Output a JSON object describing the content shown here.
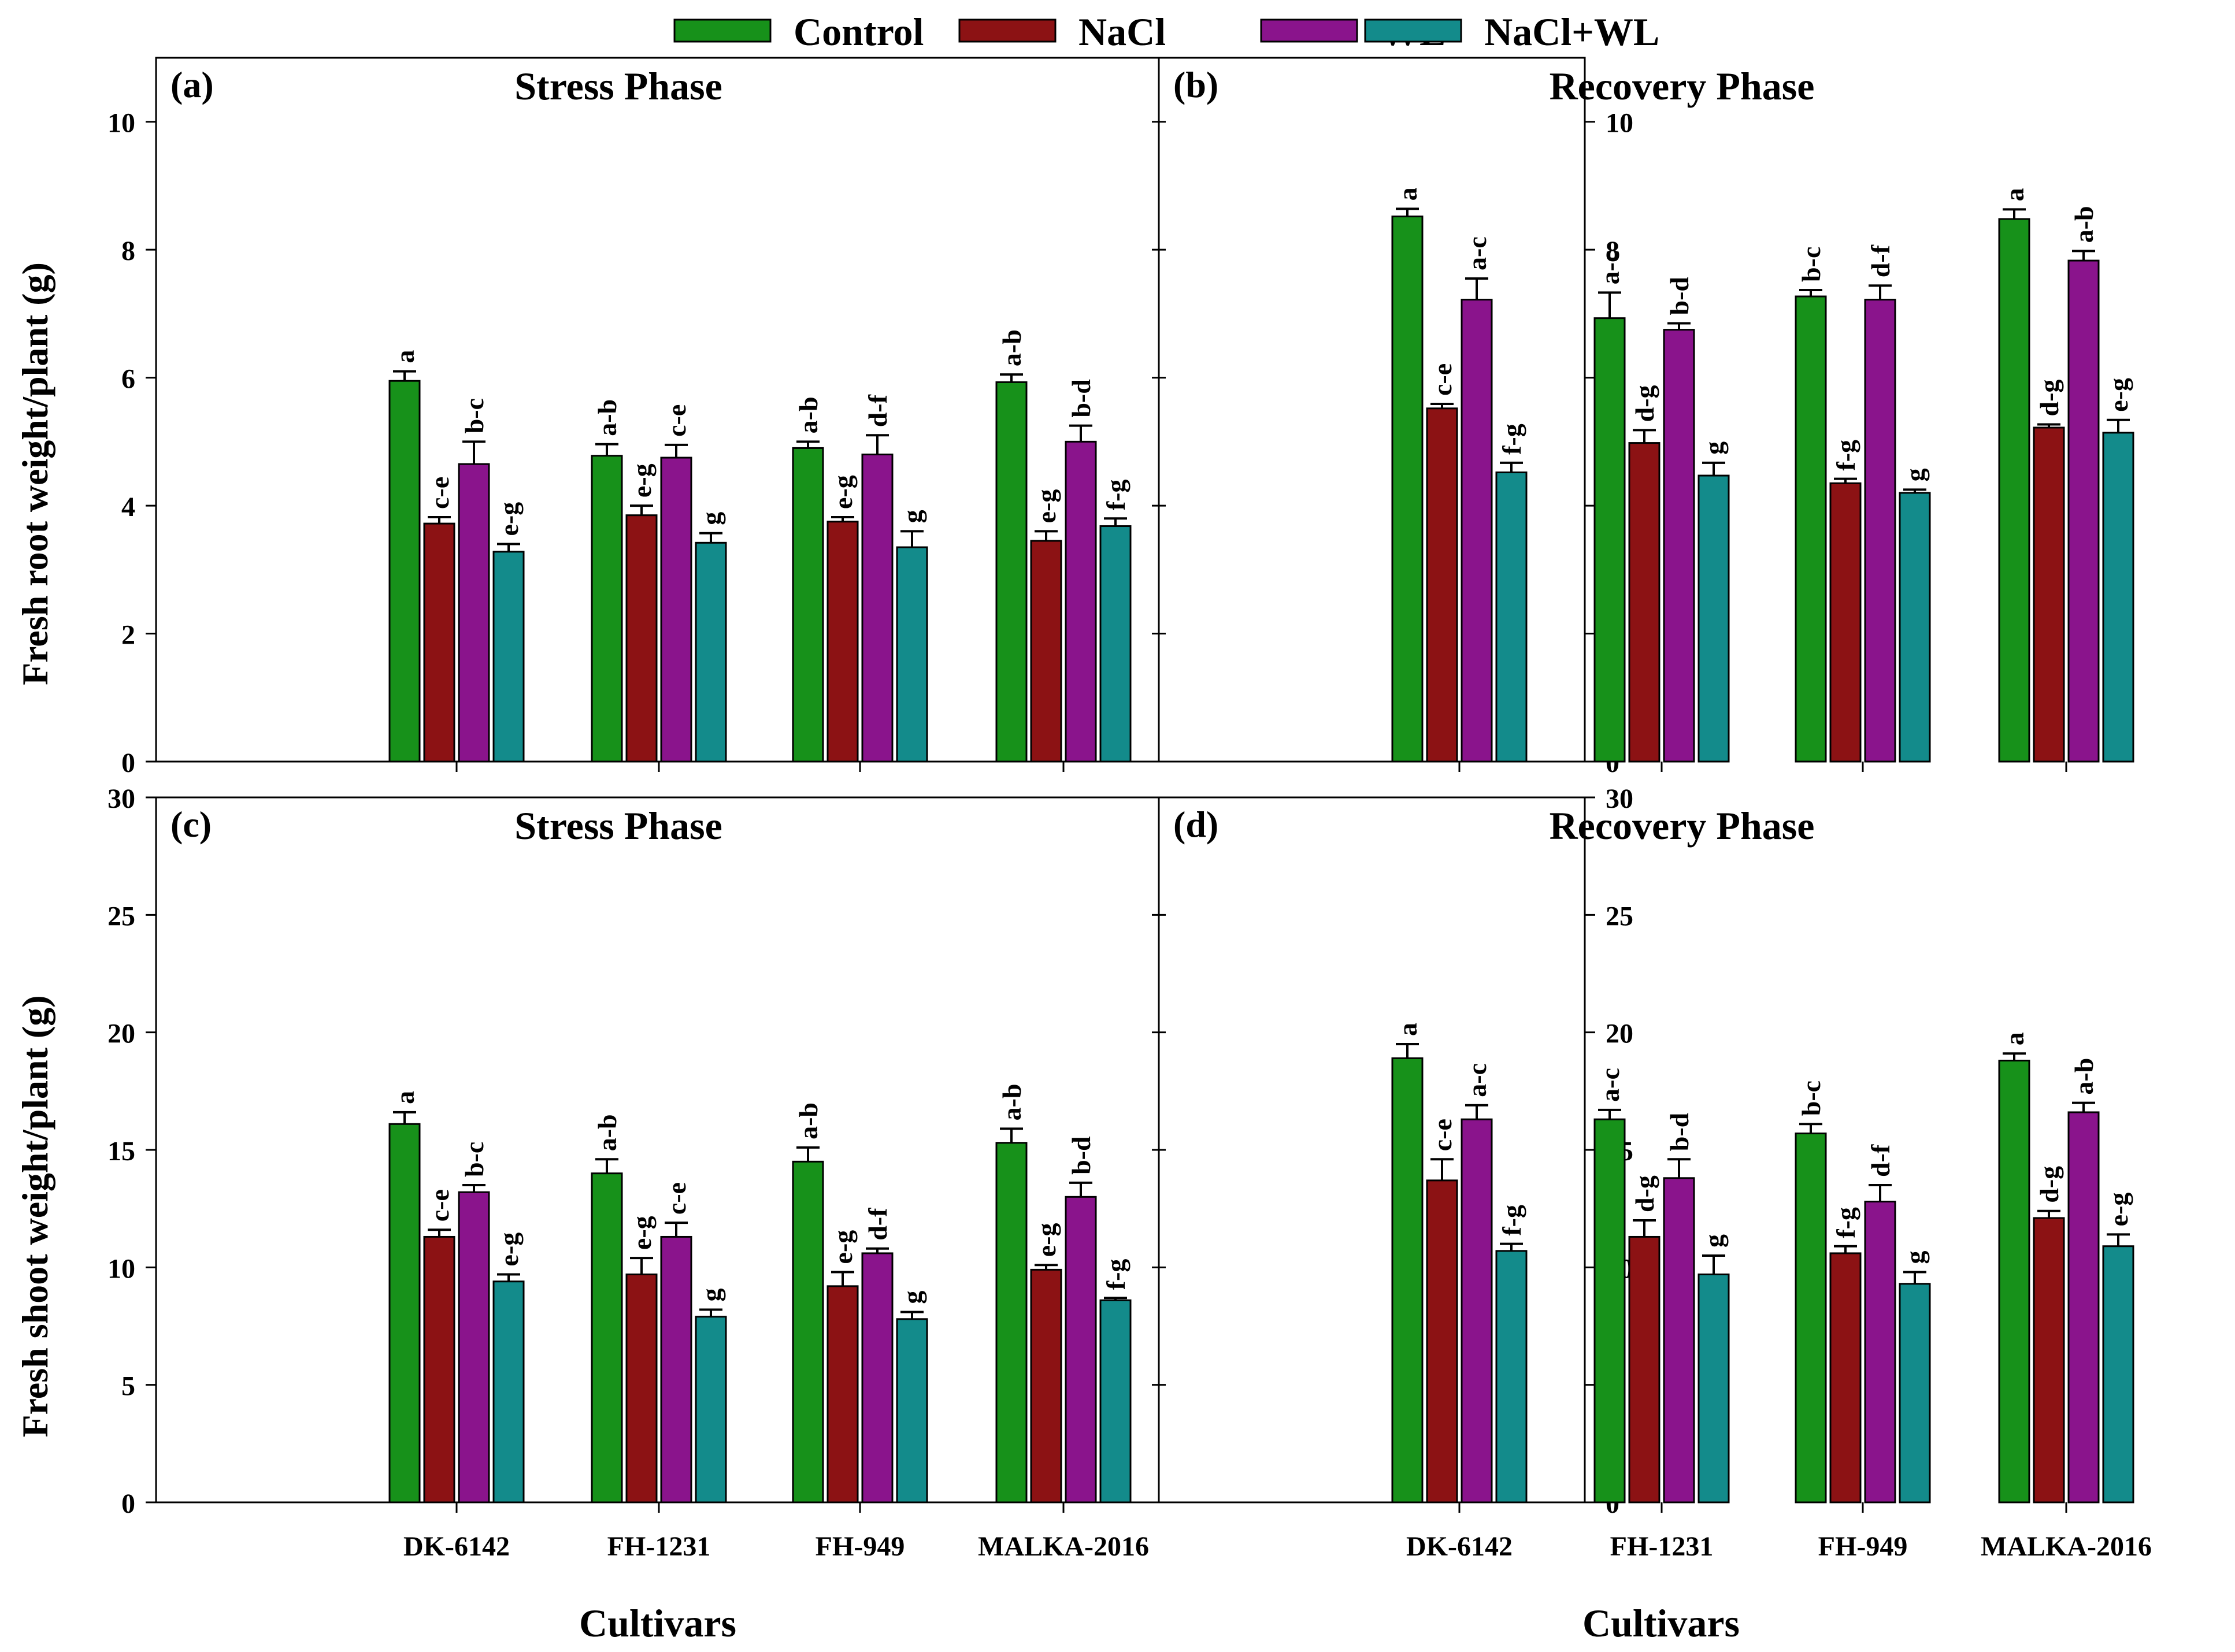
{
  "colors": {
    "Control": "#17911a",
    "NaCl": "#8c1214",
    "WL": "#8a148c",
    "NaCl+WL": "#138b8b"
  },
  "chart_data": {
    "type": "bar",
    "legend": {
      "entries": [
        "Control",
        "NaCl",
        "WL",
        "NaCl+WL"
      ],
      "placement": "top-center"
    },
    "categories": [
      "DK-6142",
      "FH-1231",
      "FH-949",
      "MALKA-2016"
    ],
    "xlabel": "Cultivars",
    "rows": [
      {
        "ylabel": "Fresh root weight/plant (g)",
        "ylim": [
          0,
          11
        ],
        "yticks": [
          0,
          2,
          4,
          6,
          8,
          10
        ],
        "panels": [
          {
            "label": "(a)",
            "title": "Stress Phase",
            "series": [
              {
                "name": "Control",
                "values": [
                  5.95,
                  4.78,
                  4.9,
                  5.93
                ],
                "errors": [
                  0.15,
                  0.18,
                  0.1,
                  0.12
                ],
                "letters": [
                  "a",
                  "a-b",
                  "a-b",
                  "a-b"
                ]
              },
              {
                "name": "NaCl",
                "values": [
                  3.72,
                  3.85,
                  3.75,
                  3.45
                ],
                "errors": [
                  0.1,
                  0.15,
                  0.07,
                  0.15
                ],
                "letters": [
                  "c-e",
                  "e-g",
                  "e-g",
                  "e-g"
                ]
              },
              {
                "name": "WL",
                "values": [
                  4.65,
                  4.75,
                  4.8,
                  5.0
                ],
                "errors": [
                  0.35,
                  0.2,
                  0.3,
                  0.25
                ],
                "letters": [
                  "b-c",
                  "c-e",
                  "d-f",
                  "b-d"
                ]
              },
              {
                "name": "NaCl+WL",
                "values": [
                  3.28,
                  3.42,
                  3.35,
                  3.68
                ],
                "errors": [
                  0.12,
                  0.15,
                  0.25,
                  0.12
                ],
                "letters": [
                  "e-g",
                  "g",
                  "g",
                  "f-g"
                ]
              }
            ]
          },
          {
            "label": "(b)",
            "title": "Recovery Phase",
            "series": [
              {
                "name": "Control",
                "values": [
                  8.52,
                  6.93,
                  7.27,
                  8.48
                ],
                "errors": [
                  0.12,
                  0.4,
                  0.1,
                  0.15
                ],
                "letters": [
                  "a",
                  "a-c",
                  "b-c",
                  "a"
                ]
              },
              {
                "name": "NaCl",
                "values": [
                  5.52,
                  4.98,
                  4.35,
                  5.22
                ],
                "errors": [
                  0.07,
                  0.2,
                  0.07,
                  0.05
                ],
                "letters": [
                  "c-e",
                  "d-g",
                  "f-g",
                  "d-g"
                ]
              },
              {
                "name": "WL",
                "values": [
                  7.22,
                  6.75,
                  7.22,
                  7.83
                ],
                "errors": [
                  0.33,
                  0.1,
                  0.22,
                  0.15
                ],
                "letters": [
                  "a-c",
                  "b-d",
                  "d-f",
                  "a-b"
                ]
              },
              {
                "name": "NaCl+WL",
                "values": [
                  4.52,
                  4.47,
                  4.2,
                  5.14
                ],
                "errors": [
                  0.15,
                  0.2,
                  0.05,
                  0.2
                ],
                "letters": [
                  "f-g",
                  "g",
                  "g",
                  "e-g"
                ]
              }
            ]
          }
        ]
      },
      {
        "ylabel": "Fresh shoot weight/plant (g)",
        "ylim": [
          0,
          30
        ],
        "yticks": [
          0,
          5,
          10,
          15,
          20,
          25,
          30
        ],
        "panels": [
          {
            "label": "(c)",
            "title": "Stress Phase",
            "series": [
              {
                "name": "Control",
                "values": [
                  16.1,
                  14.0,
                  14.5,
                  15.3
                ],
                "errors": [
                  0.5,
                  0.6,
                  0.6,
                  0.6
                ],
                "letters": [
                  "a",
                  "a-b",
                  "a-b",
                  "a-b"
                ]
              },
              {
                "name": "NaCl",
                "values": [
                  11.3,
                  9.7,
                  9.2,
                  9.9
                ],
                "errors": [
                  0.3,
                  0.7,
                  0.6,
                  0.2
                ],
                "letters": [
                  "c-e",
                  "e-g",
                  "e-g",
                  "e-g"
                ]
              },
              {
                "name": "WL",
                "values": [
                  13.2,
                  11.3,
                  10.6,
                  13.0
                ],
                "errors": [
                  0.3,
                  0.6,
                  0.2,
                  0.6
                ],
                "letters": [
                  "b-c",
                  "c-e",
                  "d-f",
                  "b-d"
                ]
              },
              {
                "name": "NaCl+WL",
                "values": [
                  9.4,
                  7.9,
                  7.8,
                  8.6
                ],
                "errors": [
                  0.3,
                  0.3,
                  0.3,
                  0.1
                ],
                "letters": [
                  "e-g",
                  "g",
                  "g",
                  "f-g"
                ]
              }
            ]
          },
          {
            "label": "(d)",
            "title": "Recovery Phase",
            "series": [
              {
                "name": "Control",
                "values": [
                  18.9,
                  16.3,
                  15.7,
                  18.8
                ],
                "errors": [
                  0.6,
                  0.4,
                  0.4,
                  0.3
                ],
                "letters": [
                  "a",
                  "a-c",
                  "b-c",
                  "a"
                ]
              },
              {
                "name": "NaCl",
                "values": [
                  13.7,
                  11.3,
                  10.6,
                  12.1
                ],
                "errors": [
                  0.9,
                  0.7,
                  0.3,
                  0.3
                ],
                "letters": [
                  "c-e",
                  "d-g",
                  "f-g",
                  "d-g"
                ]
              },
              {
                "name": "WL",
                "values": [
                  16.3,
                  13.8,
                  12.8,
                  16.6
                ],
                "errors": [
                  0.6,
                  0.8,
                  0.7,
                  0.4
                ],
                "letters": [
                  "a-c",
                  "b-d",
                  "d-f",
                  "a-b"
                ]
              },
              {
                "name": "NaCl+WL",
                "values": [
                  10.7,
                  9.7,
                  9.3,
                  10.9
                ],
                "errors": [
                  0.3,
                  0.8,
                  0.5,
                  0.5
                ],
                "letters": [
                  "f-g",
                  "g",
                  "g",
                  "e-g"
                ]
              }
            ]
          }
        ]
      }
    ]
  }
}
